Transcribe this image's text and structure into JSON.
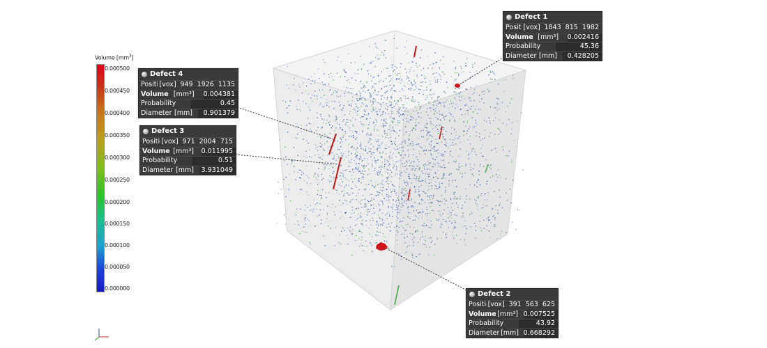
{
  "legend": {
    "title_main": "Volume [mm",
    "title_sup": "3",
    "title_end": "]",
    "ticks": [
      "0.000500",
      "0.000450",
      "0.000400",
      "0.000350",
      "0.000300",
      "0.000250",
      "0.000200",
      "0.000150",
      "0.000100",
      "0.000050",
      "0.000000"
    ]
  },
  "defects": [
    {
      "name": "Defect 1",
      "position_label": "Position",
      "position_unit": "[vox]",
      "position_values": [
        "1843",
        "815",
        "1982"
      ],
      "volume_label": "Volume",
      "volume_unit": "[mm³]",
      "volume_value": "0.002416",
      "probability_label": "Probability",
      "probability_value": "45.36",
      "diameter_label": "Diameter",
      "diameter_unit": "[mm]",
      "diameter_value": "0.428205"
    },
    {
      "name": "Defect 2",
      "position_label": "Position",
      "position_unit": "[vox]",
      "position_values": [
        "391",
        "563",
        "625"
      ],
      "volume_label": "Volume",
      "volume_unit": "[mm³]",
      "volume_value": "0.007525",
      "probability_label": "Probability",
      "probability_value": "43.92",
      "diameter_label": "Diameter",
      "diameter_unit": "[mm]",
      "diameter_value": "0.668292"
    },
    {
      "name": "Defect 3",
      "position_label": "Position",
      "position_unit": "[vox]",
      "position_values": [
        "971",
        "2004",
        "715"
      ],
      "volume_label": "Volume",
      "volume_unit": "[mm³]",
      "volume_value": "0.011995",
      "probability_label": "Probability",
      "probability_value": "0.51",
      "diameter_label": "Diameter",
      "diameter_unit": "[mm]",
      "diameter_value": "3.931049"
    },
    {
      "name": "Defect 4",
      "position_label": "Position",
      "position_unit": "[vox]",
      "position_values": [
        "949",
        "1926",
        "1135"
      ],
      "volume_label": "Volume",
      "volume_unit": "[mm³]",
      "volume_value": "0.004381",
      "probability_label": "Probability",
      "probability_value": "0.45",
      "diameter_label": "Diameter",
      "diameter_unit": "[mm]",
      "diameter_value": "0.901379"
    }
  ],
  "colors": {
    "pore_blue": "#2a4fa8",
    "pore_green": "#3aa83a",
    "pore_red": "#d0141c",
    "cube_edge": "#cfcfcf",
    "box_bg": "#3a3a3a"
  }
}
